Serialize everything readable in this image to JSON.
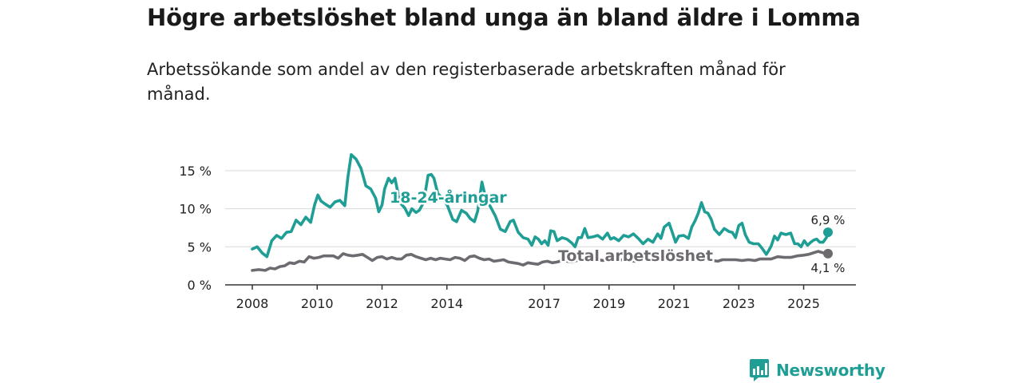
{
  "title": "Högre arbetslöshet bland unga än bland äldre i Lomma",
  "subtitle": "Arbetssökande som andel av den registerbaserade arbetskraften månad för månad.",
  "brand": {
    "name": "Newsworthy",
    "icon": "newsworthy-chart-icon"
  },
  "colors": {
    "youth": "#1f9e95",
    "total": "#6e6b70",
    "grid": "#d9d9d9",
    "axis": "#333333"
  },
  "chart_data": {
    "type": "line",
    "title": "Högre arbetslöshet bland unga än bland äldre i Lomma",
    "xlabel": "",
    "ylabel": "",
    "x_range": [
      2008.0,
      2025.75
    ],
    "ylim": [
      0,
      17.5
    ],
    "y_ticks": [
      0,
      5,
      10,
      15
    ],
    "y_tick_labels": [
      "0 %",
      "5 %",
      "10 %",
      "15 %"
    ],
    "x_ticks": [
      2008,
      2010,
      2012,
      2014,
      2017,
      2019,
      2021,
      2023,
      2025
    ],
    "x_tick_labels": [
      "2008",
      "2010",
      "2012",
      "2014",
      "2017",
      "2019",
      "2021",
      "2023",
      "2025"
    ],
    "grid": true,
    "series": [
      {
        "name": "18-24-åringar",
        "label": "18-24-åringar",
        "color_key": "youth",
        "end_label": "6,9 %",
        "points": [
          [
            2008.0,
            4.7
          ],
          [
            2008.15,
            5.0
          ],
          [
            2008.3,
            4.2
          ],
          [
            2008.45,
            3.7
          ],
          [
            2008.6,
            5.8
          ],
          [
            2008.75,
            6.5
          ],
          [
            2008.9,
            6.1
          ],
          [
            2009.05,
            6.9
          ],
          [
            2009.2,
            7.0
          ],
          [
            2009.35,
            8.5
          ],
          [
            2009.5,
            7.9
          ],
          [
            2009.65,
            8.9
          ],
          [
            2009.8,
            8.2
          ],
          [
            2009.92,
            10.5
          ],
          [
            2010.02,
            11.8
          ],
          [
            2010.12,
            11.0
          ],
          [
            2010.25,
            10.6
          ],
          [
            2010.4,
            10.2
          ],
          [
            2010.55,
            10.9
          ],
          [
            2010.7,
            11.1
          ],
          [
            2010.85,
            10.4
          ],
          [
            2010.95,
            14.2
          ],
          [
            2011.05,
            17.1
          ],
          [
            2011.2,
            16.5
          ],
          [
            2011.35,
            15.3
          ],
          [
            2011.5,
            13.0
          ],
          [
            2011.65,
            12.6
          ],
          [
            2011.8,
            11.4
          ],
          [
            2011.9,
            9.6
          ],
          [
            2012.0,
            10.5
          ],
          [
            2012.08,
            12.6
          ],
          [
            2012.2,
            14.0
          ],
          [
            2012.3,
            13.4
          ],
          [
            2012.4,
            14.0
          ],
          [
            2012.55,
            10.8
          ],
          [
            2012.7,
            10.1
          ],
          [
            2012.82,
            9.1
          ],
          [
            2012.92,
            10.0
          ],
          [
            2013.05,
            9.5
          ],
          [
            2013.15,
            9.8
          ],
          [
            2013.28,
            10.8
          ],
          [
            2013.42,
            14.4
          ],
          [
            2013.52,
            14.5
          ],
          [
            2013.6,
            14.0
          ],
          [
            2013.72,
            12.0
          ],
          [
            2013.88,
            11.3
          ],
          [
            2014.02,
            10.4
          ],
          [
            2014.18,
            8.6
          ],
          [
            2014.3,
            8.3
          ],
          [
            2014.45,
            9.8
          ],
          [
            2014.6,
            9.4
          ],
          [
            2014.72,
            8.7
          ],
          [
            2014.85,
            8.3
          ],
          [
            2014.95,
            9.7
          ],
          [
            2015.08,
            13.5
          ],
          [
            2015.2,
            11.3
          ],
          [
            2015.35,
            10.2
          ],
          [
            2015.5,
            9.0
          ],
          [
            2015.65,
            7.3
          ],
          [
            2015.8,
            7.0
          ],
          [
            2015.95,
            8.3
          ],
          [
            2016.05,
            8.5
          ],
          [
            2016.2,
            6.9
          ],
          [
            2016.35,
            6.2
          ],
          [
            2016.5,
            6.0
          ],
          [
            2016.62,
            5.2
          ],
          [
            2016.72,
            6.3
          ],
          [
            2016.82,
            6.0
          ],
          [
            2016.92,
            5.4
          ],
          [
            2017.02,
            5.8
          ],
          [
            2017.12,
            5.2
          ],
          [
            2017.2,
            7.1
          ],
          [
            2017.3,
            7.0
          ],
          [
            2017.4,
            5.8
          ],
          [
            2017.55,
            6.2
          ],
          [
            2017.7,
            6.0
          ],
          [
            2017.85,
            5.5
          ],
          [
            2017.95,
            5.0
          ],
          [
            2018.05,
            6.2
          ],
          [
            2018.15,
            6.2
          ],
          [
            2018.25,
            7.4
          ],
          [
            2018.35,
            6.2
          ],
          [
            2018.5,
            6.3
          ],
          [
            2018.65,
            6.5
          ],
          [
            2018.8,
            6.0
          ],
          [
            2018.95,
            6.8
          ],
          [
            2019.05,
            6.0
          ],
          [
            2019.15,
            6.2
          ],
          [
            2019.3,
            5.8
          ],
          [
            2019.45,
            6.5
          ],
          [
            2019.6,
            6.3
          ],
          [
            2019.75,
            6.7
          ],
          [
            2019.9,
            6.1
          ],
          [
            2020.05,
            5.4
          ],
          [
            2020.2,
            6.0
          ],
          [
            2020.35,
            5.6
          ],
          [
            2020.5,
            6.7
          ],
          [
            2020.6,
            6.1
          ],
          [
            2020.7,
            7.6
          ],
          [
            2020.85,
            8.1
          ],
          [
            2020.95,
            6.9
          ],
          [
            2021.05,
            5.6
          ],
          [
            2021.15,
            6.4
          ],
          [
            2021.3,
            6.5
          ],
          [
            2021.45,
            6.1
          ],
          [
            2021.55,
            7.6
          ],
          [
            2021.65,
            8.4
          ],
          [
            2021.75,
            9.4
          ],
          [
            2021.85,
            10.8
          ],
          [
            2021.95,
            9.6
          ],
          [
            2022.05,
            9.4
          ],
          [
            2022.15,
            8.6
          ],
          [
            2022.25,
            7.3
          ],
          [
            2022.4,
            6.6
          ],
          [
            2022.55,
            7.4
          ],
          [
            2022.7,
            7.0
          ],
          [
            2022.8,
            6.9
          ],
          [
            2022.9,
            6.2
          ],
          [
            2023.0,
            7.8
          ],
          [
            2023.1,
            8.1
          ],
          [
            2023.2,
            6.6
          ],
          [
            2023.32,
            5.6
          ],
          [
            2023.45,
            5.4
          ],
          [
            2023.6,
            5.4
          ],
          [
            2023.72,
            4.8
          ],
          [
            2023.85,
            4.0
          ],
          [
            2023.92,
            4.5
          ],
          [
            2024.0,
            5.1
          ],
          [
            2024.1,
            6.4
          ],
          [
            2024.2,
            5.9
          ],
          [
            2024.3,
            6.8
          ],
          [
            2024.45,
            6.6
          ],
          [
            2024.6,
            6.8
          ],
          [
            2024.72,
            5.4
          ],
          [
            2024.82,
            5.4
          ],
          [
            2024.92,
            5.0
          ],
          [
            2025.02,
            5.8
          ],
          [
            2025.12,
            5.2
          ],
          [
            2025.22,
            5.6
          ],
          [
            2025.32,
            5.9
          ],
          [
            2025.4,
            6.0
          ],
          [
            2025.5,
            5.6
          ],
          [
            2025.6,
            5.6
          ],
          [
            2025.7,
            6.2
          ],
          [
            2025.75,
            6.9
          ]
        ]
      },
      {
        "name": "Total arbetslöshet",
        "label": "Total arbetslöshet",
        "color_key": "total",
        "end_label": "4,1 %",
        "points": [
          [
            2008.0,
            1.9
          ],
          [
            2008.2,
            2.0
          ],
          [
            2008.4,
            1.9
          ],
          [
            2008.55,
            2.2
          ],
          [
            2008.7,
            2.1
          ],
          [
            2008.85,
            2.4
          ],
          [
            2009.0,
            2.5
          ],
          [
            2009.15,
            2.9
          ],
          [
            2009.3,
            2.8
          ],
          [
            2009.45,
            3.1
          ],
          [
            2009.6,
            3.0
          ],
          [
            2009.75,
            3.7
          ],
          [
            2009.9,
            3.5
          ],
          [
            2010.05,
            3.6
          ],
          [
            2010.2,
            3.8
          ],
          [
            2010.35,
            3.8
          ],
          [
            2010.5,
            3.8
          ],
          [
            2010.65,
            3.5
          ],
          [
            2010.8,
            4.1
          ],
          [
            2010.95,
            3.9
          ],
          [
            2011.1,
            3.8
          ],
          [
            2011.25,
            3.9
          ],
          [
            2011.4,
            4.0
          ],
          [
            2011.55,
            3.6
          ],
          [
            2011.7,
            3.2
          ],
          [
            2011.85,
            3.6
          ],
          [
            2012.0,
            3.7
          ],
          [
            2012.15,
            3.4
          ],
          [
            2012.3,
            3.6
          ],
          [
            2012.45,
            3.4
          ],
          [
            2012.6,
            3.4
          ],
          [
            2012.75,
            3.9
          ],
          [
            2012.9,
            4.0
          ],
          [
            2013.05,
            3.7
          ],
          [
            2013.2,
            3.5
          ],
          [
            2013.35,
            3.3
          ],
          [
            2013.5,
            3.5
          ],
          [
            2013.65,
            3.3
          ],
          [
            2013.8,
            3.5
          ],
          [
            2013.95,
            3.4
          ],
          [
            2014.1,
            3.3
          ],
          [
            2014.25,
            3.6
          ],
          [
            2014.4,
            3.5
          ],
          [
            2014.55,
            3.2
          ],
          [
            2014.7,
            3.7
          ],
          [
            2014.85,
            3.8
          ],
          [
            2015.0,
            3.5
          ],
          [
            2015.15,
            3.3
          ],
          [
            2015.3,
            3.4
          ],
          [
            2015.45,
            3.1
          ],
          [
            2015.6,
            3.2
          ],
          [
            2015.75,
            3.3
          ],
          [
            2015.9,
            3.0
          ],
          [
            2016.05,
            2.9
          ],
          [
            2016.2,
            2.8
          ],
          [
            2016.35,
            2.6
          ],
          [
            2016.5,
            2.9
          ],
          [
            2016.65,
            2.8
          ],
          [
            2016.8,
            2.7
          ],
          [
            2016.95,
            3.0
          ],
          [
            2017.1,
            3.1
          ],
          [
            2017.25,
            2.9
          ],
          [
            2017.4,
            3.0
          ],
          [
            2017.55,
            3.2
          ],
          [
            2017.7,
            3.1
          ],
          [
            2017.85,
            3.0
          ],
          [
            2018.0,
            3.2
          ],
          [
            2018.2,
            3.3
          ],
          [
            2018.4,
            3.2
          ],
          [
            2018.6,
            3.4
          ],
          [
            2018.8,
            3.2
          ],
          [
            2019.0,
            3.3
          ],
          [
            2019.2,
            3.1
          ],
          [
            2019.4,
            3.3
          ],
          [
            2019.6,
            3.2
          ],
          [
            2019.8,
            3.1
          ],
          [
            2020.0,
            3.2
          ],
          [
            2020.2,
            3.4
          ],
          [
            2020.4,
            3.6
          ],
          [
            2020.6,
            3.5
          ],
          [
            2020.8,
            3.6
          ],
          [
            2021.0,
            3.5
          ],
          [
            2021.2,
            3.4
          ],
          [
            2021.4,
            3.3
          ],
          [
            2021.6,
            3.2
          ],
          [
            2021.8,
            3.4
          ],
          [
            2022.0,
            3.3
          ],
          [
            2022.2,
            3.2
          ],
          [
            2022.35,
            3.1
          ],
          [
            2022.5,
            3.3
          ],
          [
            2022.7,
            3.3
          ],
          [
            2022.9,
            3.3
          ],
          [
            2023.1,
            3.2
          ],
          [
            2023.3,
            3.3
          ],
          [
            2023.5,
            3.2
          ],
          [
            2023.65,
            3.4
          ],
          [
            2023.8,
            3.4
          ],
          [
            2024.0,
            3.4
          ],
          [
            2024.2,
            3.7
          ],
          [
            2024.4,
            3.6
          ],
          [
            2024.6,
            3.6
          ],
          [
            2024.8,
            3.8
          ],
          [
            2025.0,
            3.9
          ],
          [
            2025.15,
            4.0
          ],
          [
            2025.3,
            4.2
          ],
          [
            2025.45,
            4.4
          ],
          [
            2025.6,
            4.2
          ],
          [
            2025.75,
            4.1
          ]
        ]
      }
    ]
  }
}
